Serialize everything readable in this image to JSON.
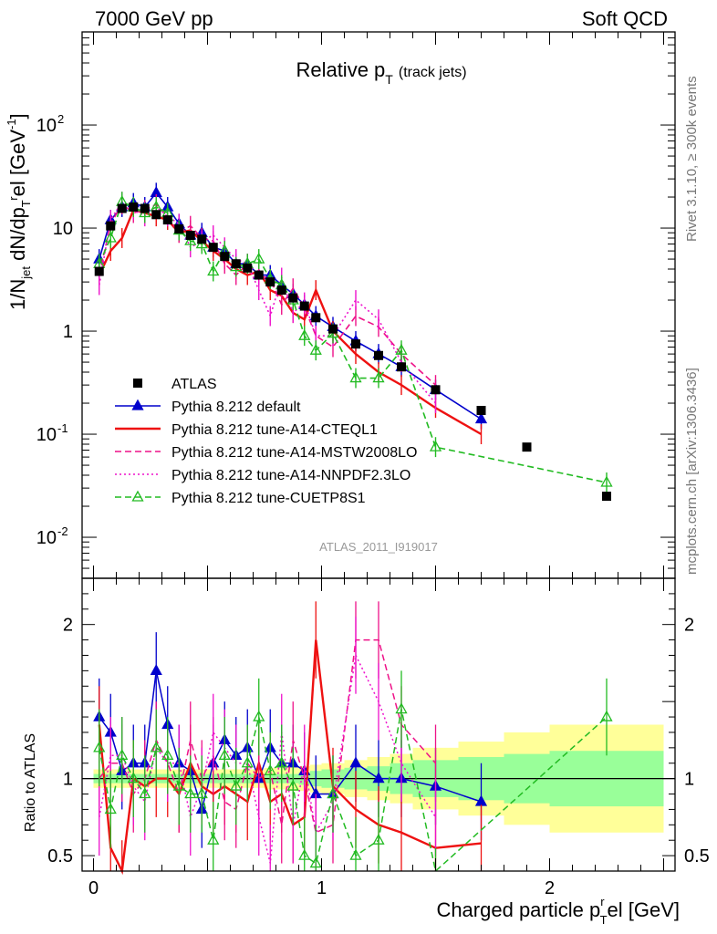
{
  "header": {
    "left": "7000 GeV pp",
    "right": "Soft QCD"
  },
  "side": {
    "rivet": "Rivet 3.1.10, ≥ 300k events",
    "mcplots": "mcplots.cern.ch [arXiv:1306.3436]"
  },
  "watermark": "ATLAS_2011_I919017",
  "colors": {
    "atlas": "#000000",
    "default": "#0000cc",
    "cteql1": "#ee1111",
    "mstw": "#ee1188",
    "nnpdf": "#ee11cc",
    "cuetp": "#22bb22",
    "band_inner": "#99ff99",
    "band_outer": "#ffff99"
  },
  "chart_data": [
    {
      "type": "line",
      "title": "Relative p_T (track jets)",
      "title_main": "Relative p",
      "title_sub": "T",
      "title_suffix": "(track jets)",
      "ylabel": "1/N_jet dN/dp_T^rel [GeV^-1]",
      "yscale": "log",
      "xlim": [
        -0.05,
        2.55
      ],
      "ylim": [
        0.004,
        800
      ],
      "yticks": [
        {
          "v": 0.01,
          "label": "10",
          "exp": "-2"
        },
        {
          "v": 0.1,
          "label": "10",
          "exp": "-1"
        },
        {
          "v": 1,
          "label": "1"
        },
        {
          "v": 10,
          "label": "10"
        },
        {
          "v": 100,
          "label": "10",
          "exp": "2"
        }
      ],
      "legend": [
        "ATLAS",
        "Pythia 8.212 default",
        "Pythia 8.212 tune-A14-CTEQL1",
        "Pythia 8.212 tune-A14-MSTW2008LO",
        "Pythia 8.212 tune-A14-NNPDF2.3LO",
        "Pythia 8.212 tune-CUETP8S1"
      ],
      "x": [
        0.025,
        0.075,
        0.125,
        0.175,
        0.225,
        0.275,
        0.325,
        0.375,
        0.425,
        0.475,
        0.525,
        0.575,
        0.625,
        0.675,
        0.725,
        0.775,
        0.825,
        0.875,
        0.925,
        0.975,
        1.05,
        1.15,
        1.25,
        1.35,
        1.5,
        1.7,
        1.9,
        2.25
      ],
      "atlas": [
        3.8,
        10.5,
        15.5,
        16,
        15.5,
        13.5,
        12,
        9.8,
        8.5,
        7.8,
        6.5,
        5.3,
        4.5,
        4.1,
        3.5,
        3,
        2.5,
        2.1,
        1.75,
        1.35,
        1.05,
        0.75,
        0.58,
        0.45,
        0.27,
        0.17,
        0.075,
        0.025
      ],
      "series": [
        {
          "name": "Pythia 8.212 default",
          "key": "default",
          "style": "solid",
          "marker": "tri-filled",
          "values": [
            5,
            12,
            16,
            17.5,
            16,
            22,
            16,
            11,
            8.5,
            9,
            6.5,
            6,
            4.5,
            4.5,
            3.5,
            3.5,
            2.8,
            2.3,
            1.8,
            1.4,
            1.1,
            0.8,
            0.6,
            0.45,
            0.27,
            0.14,
            null,
            null
          ]
        },
        {
          "name": "Pythia 8.212 tune-A14-CTEQL1",
          "key": "cteql1",
          "style": "solid",
          "marker": "none",
          "values": [
            3.5,
            6,
            8,
            15,
            14,
            13,
            12,
            9,
            9.5,
            7.5,
            6,
            5,
            4,
            3.5,
            3.8,
            2.5,
            2.2,
            1.5,
            1.3,
            2.5,
            1.0,
            0.6,
            0.4,
            0.3,
            0.18,
            0.1,
            null,
            null
          ]
        },
        {
          "name": "Pythia 8.212 tune-A14-MSTW2008LO",
          "key": "mstw",
          "style": "dash",
          "marker": "none",
          "values": [
            3.5,
            11,
            17,
            14,
            15,
            17,
            13,
            9,
            10.5,
            8,
            7.5,
            4.5,
            3.5,
            4.5,
            3.5,
            3.2,
            1.8,
            2.6,
            1.7,
            0.9,
            0.7,
            1.4,
            1.1,
            0.6,
            0.3,
            null,
            null,
            null
          ]
        },
        {
          "name": "Pythia 8.212 tune-A14-NNPDF2.3LO",
          "key": "nnpdf",
          "style": "dot",
          "marker": "none",
          "values": [
            2.8,
            12,
            18,
            15,
            13,
            16,
            13,
            11,
            6.5,
            7.5,
            8.5,
            6.5,
            5,
            4.5,
            2.5,
            1.4,
            3.3,
            1.5,
            1.9,
            0.9,
            0.9,
            2.0,
            1.3,
            0.5,
            0.2,
            null,
            null,
            null
          ]
        },
        {
          "name": "Pythia 8.212 tune-CUETP8S1",
          "key": "cuetp",
          "style": "dash",
          "marker": "tri-open",
          "values": [
            4.5,
            8,
            18,
            16,
            14,
            16,
            14,
            9.5,
            7.5,
            7,
            3.8,
            6,
            4.2,
            4.5,
            5,
            3.2,
            2.8,
            2.0,
            0.9,
            0.65,
            0.95,
            0.35,
            0.35,
            0.65,
            0.075,
            null,
            null,
            0.034
          ]
        }
      ]
    },
    {
      "type": "line",
      "title": "Ratio to ATLAS",
      "ylabel": "Ratio to ATLAS",
      "xlabel": "Charged particle p_T^rel [GeV]",
      "xlabel_main": "Charged particle p",
      "xlabel_sub": "T",
      "xlabel_sup": "r",
      "xlabel_suffix": "el [GeV]",
      "xlim": [
        -0.05,
        2.55
      ],
      "ylim": [
        0.4,
        2.3
      ],
      "xticks": [
        {
          "v": 0,
          "label": "0"
        },
        {
          "v": 1,
          "label": "1"
        },
        {
          "v": 2,
          "label": "2"
        }
      ],
      "yticks": [
        {
          "v": 0.5,
          "label": "0.5"
        },
        {
          "v": 1,
          "label": "1"
        },
        {
          "v": 2,
          "label": "2"
        }
      ],
      "band_edges": [
        0,
        0.05,
        0.1,
        0.15,
        0.2,
        0.25,
        0.3,
        0.35,
        0.4,
        0.45,
        0.5,
        0.55,
        0.6,
        0.65,
        0.7,
        0.75,
        0.8,
        0.85,
        0.9,
        0.95,
        1.0,
        1.1,
        1.2,
        1.3,
        1.4,
        1.6,
        1.8,
        2.0,
        2.5
      ],
      "band_inner": [
        0.03,
        0.03,
        0.03,
        0.03,
        0.03,
        0.03,
        0.03,
        0.03,
        0.03,
        0.03,
        0.03,
        0.03,
        0.03,
        0.03,
        0.03,
        0.03,
        0.03,
        0.03,
        0.04,
        0.05,
        0.06,
        0.07,
        0.08,
        0.1,
        0.12,
        0.14,
        0.16,
        0.18
      ],
      "band_outer": [
        0.06,
        0.06,
        0.06,
        0.06,
        0.06,
        0.06,
        0.06,
        0.06,
        0.06,
        0.06,
        0.06,
        0.06,
        0.06,
        0.06,
        0.06,
        0.07,
        0.07,
        0.08,
        0.08,
        0.09,
        0.1,
        0.12,
        0.14,
        0.16,
        0.2,
        0.24,
        0.3,
        0.35
      ],
      "series": [
        {
          "key": "default",
          "values": [
            1.4,
            1.3,
            1.05,
            1.1,
            1.1,
            1.7,
            1.35,
            1.1,
            1.05,
            0.8,
            1.1,
            1.25,
            1.15,
            1.2,
            1.0,
            1.2,
            1.1,
            1.1,
            1.05,
            0.9,
            0.9,
            1.1,
            1.0,
            1.0,
            0.95,
            0.85,
            null,
            null
          ]
        },
        {
          "key": "cteql1",
          "values": [
            1.35,
            0.55,
            0.35,
            1.0,
            0.95,
            1.0,
            1.0,
            0.9,
            1.1,
            0.95,
            0.9,
            0.95,
            0.9,
            0.85,
            1.1,
            0.85,
            0.9,
            0.7,
            0.75,
            1.9,
            0.95,
            0.8,
            0.7,
            0.65,
            0.55,
            0.58,
            null,
            null
          ]
        },
        {
          "key": "mstw",
          "values": [
            1.0,
            1.1,
            1.1,
            0.9,
            1.0,
            1.25,
            1.1,
            0.9,
            1.25,
            1.0,
            1.15,
            0.85,
            0.8,
            1.1,
            1.0,
            1.05,
            0.7,
            1.25,
            1.0,
            0.65,
            0.7,
            1.9,
            1.9,
            1.35,
            1.1,
            null,
            null,
            null
          ]
        },
        {
          "key": "nnpdf",
          "values": [
            0.75,
            1.15,
            1.15,
            0.95,
            0.85,
            1.2,
            1.1,
            1.1,
            0.75,
            0.95,
            1.3,
            1.2,
            1.1,
            1.1,
            0.75,
            0.45,
            1.3,
            0.7,
            1.1,
            0.65,
            0.85,
            1.8,
            1.5,
            1.1,
            0.75,
            null,
            null,
            null
          ]
        },
        {
          "key": "cuetp",
          "values": [
            1.2,
            0.8,
            1.15,
            1.0,
            0.9,
            1.2,
            1.15,
            0.95,
            0.9,
            0.9,
            0.6,
            1.15,
            0.95,
            1.1,
            1.4,
            1.05,
            1.1,
            0.95,
            0.5,
            0.45,
            0.9,
            0.5,
            0.6,
            1.45,
            0.3,
            null,
            null,
            1.4
          ]
        }
      ]
    }
  ]
}
